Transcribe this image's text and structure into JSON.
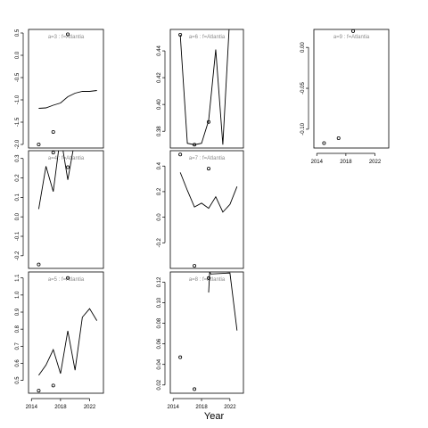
{
  "figure": {
    "xlabel": "Year"
  },
  "colors": {
    "line": "#000000",
    "points": "#000000",
    "panel_label": "#8a8a8a",
    "background": "#ffffff"
  },
  "chart_data": [
    {
      "type": "line",
      "label": "a=3 : f=Atlantia",
      "x_ticks": [
        2014,
        2018,
        2022
      ],
      "show_x_ticks": false,
      "y_ticks": [
        0.5,
        0.0,
        -0.5,
        -1.0,
        -1.5,
        -2.0
      ],
      "y_tick_labels": [
        "0.5",
        "0.0",
        "-0.5",
        "-1.0",
        "-1.5",
        "-2.0"
      ],
      "xlim": [
        2013.6,
        2023.9
      ],
      "ylim": [
        -2.08,
        0.58
      ],
      "line": {
        "x": [
          2015,
          2016,
          2017,
          2018,
          2019,
          2020,
          2021,
          2022,
          2023
        ],
        "y": [
          -1.19,
          -1.18,
          -1.12,
          -1.07,
          -0.93,
          -0.85,
          -0.81,
          -0.81,
          -0.79
        ]
      },
      "points": {
        "x": [
          2015,
          2017,
          2019
        ],
        "y": [
          -2.0,
          -1.72,
          0.47
        ]
      },
      "grid": false
    },
    {
      "type": "line",
      "label": "a=6 : f=Atlantia",
      "x_ticks": [
        2014,
        2018,
        2022
      ],
      "show_x_ticks": false,
      "y_ticks": [
        0.38,
        0.4,
        0.42,
        0.44
      ],
      "y_tick_labels": [
        "0.38",
        "0.40",
        "0.42",
        "0.44"
      ],
      "xlim": [
        2013.6,
        2023.9
      ],
      "ylim": [
        0.3675,
        0.456
      ],
      "line": {
        "x": [
          2015,
          2016,
          2017,
          2018,
          2019,
          2020,
          2021,
          2022
        ],
        "y": [
          0.452,
          0.371,
          0.37,
          0.371,
          0.388,
          0.441,
          0.37,
          0.468
        ]
      },
      "points": {
        "x": [
          2015,
          2017,
          2019
        ],
        "y": [
          0.452,
          0.37,
          0.387
        ]
      },
      "grid": false
    },
    {
      "type": "line",
      "label": "a=9 : f=Atlantia",
      "x_ticks": [
        2014,
        2018,
        2022
      ],
      "show_x_ticks": true,
      "y_ticks": [
        0.0,
        -0.05,
        -0.1
      ],
      "y_tick_labels": [
        "0.00",
        "-0.05",
        "-0.10"
      ],
      "xlim": [
        2013.6,
        2023.9
      ],
      "ylim": [
        -0.123,
        0.022
      ],
      "line": {
        "x": [],
        "y": []
      },
      "points": {
        "x": [
          2015,
          2017,
          2019
        ],
        "y": [
          -0.117,
          -0.111,
          0.02
        ]
      },
      "grid": false
    },
    {
      "type": "line",
      "label": "a=4 : f=Atlantia",
      "x_ticks": [
        2014,
        2018,
        2022
      ],
      "show_x_ticks": false,
      "y_ticks": [
        0.3,
        0.2,
        0.1,
        0.0,
        -0.1,
        -0.2
      ],
      "y_tick_labels": [
        "0.3",
        "0.2",
        "0.1",
        "0.0",
        "-0.1",
        "-0.2"
      ],
      "xlim": [
        2013.6,
        2023.9
      ],
      "ylim": [
        -0.265,
        0.34
      ],
      "line": {
        "x": [
          2015,
          2016,
          2017,
          2018,
          2019,
          2020
        ],
        "y": [
          0.04,
          0.26,
          0.13,
          0.42,
          0.19,
          0.4
        ]
      },
      "points": {
        "x": [
          2015,
          2017,
          2019
        ],
        "y": [
          -0.245,
          0.33,
          0.255
        ]
      },
      "grid": false
    },
    {
      "type": "line",
      "label": "a=7 : f=Atlantia",
      "x_ticks": [
        2014,
        2018,
        2022
      ],
      "show_x_ticks": false,
      "y_ticks": [
        0.4,
        0.2,
        0.0,
        -0.2
      ],
      "y_tick_labels": [
        "0.4",
        "0.2",
        "0.0",
        "-0.2"
      ],
      "xlim": [
        2013.6,
        2023.9
      ],
      "ylim": [
        -0.4,
        0.52
      ],
      "line": {
        "x": [
          2015,
          2016,
          2017,
          2018,
          2019,
          2020,
          2021,
          2022,
          2023
        ],
        "y": [
          0.35,
          0.21,
          0.08,
          0.11,
          0.07,
          0.16,
          0.04,
          0.1,
          0.24
        ]
      },
      "points": {
        "x": [
          2015,
          2017,
          2019
        ],
        "y": [
          0.49,
          -0.38,
          0.38
        ]
      },
      "grid": false
    },
    {
      "type": "line",
      "label": "a=5 : f=Atlantia",
      "x_ticks": [
        2014,
        2018,
        2022
      ],
      "x_tick_labels": [
        "2014",
        "2018",
        "2022"
      ],
      "show_x_ticks": true,
      "y_ticks": [
        0.5,
        0.6,
        0.7,
        0.8,
        0.9,
        1.0,
        1.1
      ],
      "y_tick_labels": [
        "0.5",
        "0.6",
        "0.7",
        "0.8",
        "0.9",
        "1.0",
        "1.1"
      ],
      "xlim": [
        2013.6,
        2023.9
      ],
      "ylim": [
        0.425,
        1.135
      ],
      "line": {
        "x": [
          2015,
          2016,
          2017,
          2018,
          2019,
          2020,
          2021,
          2022,
          2023
        ],
        "y": [
          0.53,
          0.59,
          0.68,
          0.54,
          0.79,
          0.56,
          0.87,
          0.92,
          0.85
        ]
      },
      "points": {
        "x": [
          2015,
          2017,
          2019
        ],
        "y": [
          0.44,
          0.47,
          1.1
        ]
      },
      "grid": false
    },
    {
      "type": "line",
      "label": "a=8 : f=Atlantia",
      "x_ticks": [
        2014,
        2018,
        2022
      ],
      "x_tick_labels": [
        "2014",
        "2018",
        "2022"
      ],
      "show_x_ticks": true,
      "y_ticks": [
        0.02,
        0.04,
        0.06,
        0.08,
        0.1,
        0.12
      ],
      "y_tick_labels": [
        "0.02",
        "0.04",
        "0.06",
        "0.08",
        "0.10",
        "0.12"
      ],
      "xlim": [
        2013.6,
        2023.9
      ],
      "ylim": [
        0.012,
        0.13
      ],
      "line": {
        "x": [
          2019,
          2019.15,
          2019.3,
          2022,
          2023
        ],
        "y": [
          0.11,
          0.13,
          0.128,
          0.129,
          0.073
        ]
      },
      "points": {
        "x": [
          2015,
          2017,
          2019
        ],
        "y": [
          0.047,
          0.016,
          0.124
        ]
      },
      "grid": false
    }
  ]
}
